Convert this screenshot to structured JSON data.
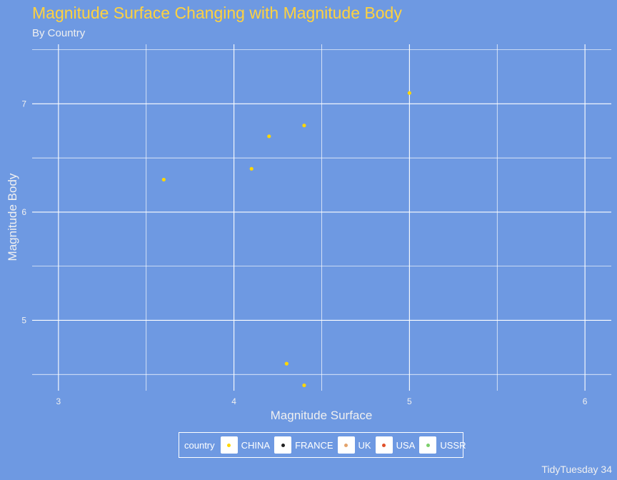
{
  "header": {
    "title": "Magnitude Surface Changing with Magnitude Body",
    "subtitle": "By Country",
    "caption": "TidyTuesday 34"
  },
  "colors": {
    "background": "#6e99e2",
    "grid": "#ffffff",
    "title": "#ffd23f",
    "text": "#f0f0f0"
  },
  "legend": {
    "title": "country",
    "items": [
      {
        "label": "CHINA",
        "color": "#ffd700"
      },
      {
        "label": "FRANCE",
        "color": "#222222"
      },
      {
        "label": "UK",
        "color": "#e3a36b"
      },
      {
        "label": "USA",
        "color": "#e0502a"
      },
      {
        "label": "USSR",
        "color": "#7ccf6a"
      }
    ]
  },
  "chart_data": {
    "type": "scatter",
    "xlabel": "Magnitude Surface",
    "ylabel": "Magnitude Body",
    "xlim": [
      2.85,
      6.15
    ],
    "ylim": [
      4.35,
      7.55
    ],
    "xticks": [
      3,
      4,
      5,
      6
    ],
    "yticks": [
      5,
      6,
      7
    ],
    "grid": true,
    "legend_position": "bottom",
    "series": [
      {
        "name": "CHINA",
        "color": "#ffd700",
        "points": [
          {
            "x": 3.6,
            "y": 6.3
          },
          {
            "x": 4.1,
            "y": 6.4
          },
          {
            "x": 4.2,
            "y": 6.7
          },
          {
            "x": 4.4,
            "y": 6.8
          },
          {
            "x": 5.0,
            "y": 7.1
          },
          {
            "x": 4.3,
            "y": 4.6
          },
          {
            "x": 4.4,
            "y": 4.4
          }
        ]
      }
    ]
  }
}
